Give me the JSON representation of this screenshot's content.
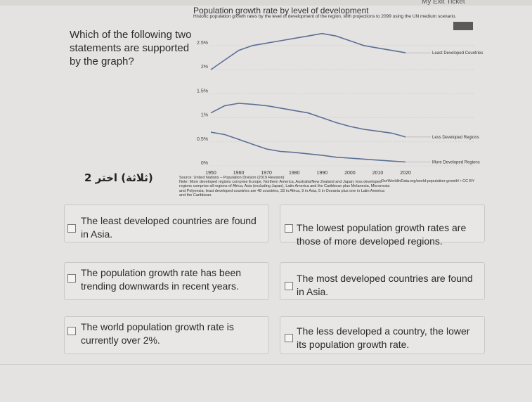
{
  "topbar": {
    "text": "My Exit Ticket"
  },
  "question": "Which of the following two statements are supported by the graph?",
  "rtl_label": "(ثلاثة) اختر 2",
  "chart_data": {
    "type": "line",
    "title": "Population growth rate by level of development",
    "subtitle": "Historic population growth rates by the level of development of the region, with projections to 2099 using the UN medium scenario.",
    "x": [
      1950,
      1955,
      1960,
      1965,
      1970,
      1975,
      1980,
      1985,
      1990,
      1995,
      2000,
      2005,
      2010,
      2015,
      2020
    ],
    "x_ticks": [
      "1950",
      "1960",
      "1970",
      "1980",
      "1990",
      "2000",
      "2010",
      "2020"
    ],
    "y_ticks": [
      "0%",
      "0.5%",
      "1%",
      "1.5%",
      "2%",
      "2.5%"
    ],
    "ylim": [
      0,
      2.6
    ],
    "xlim": [
      1950,
      2022
    ],
    "series": [
      {
        "name": "Least Developed Countries",
        "color": "#5b6f95",
        "values": [
          2.0,
          2.2,
          2.4,
          2.5,
          2.55,
          2.6,
          2.65,
          2.7,
          2.75,
          2.7,
          2.6,
          2.5,
          2.45,
          2.4,
          2.35
        ]
      },
      {
        "name": "Less Developed Regions",
        "color": "#5b6f95",
        "values": [
          1.1,
          1.25,
          1.3,
          1.28,
          1.25,
          1.2,
          1.15,
          1.1,
          1.0,
          0.9,
          0.82,
          0.76,
          0.72,
          0.68,
          0.6
        ]
      },
      {
        "name": "More Developed Regions",
        "color": "#5b6f95",
        "values": [
          0.7,
          0.65,
          0.55,
          0.45,
          0.35,
          0.3,
          0.28,
          0.25,
          0.22,
          0.18,
          0.16,
          0.14,
          0.12,
          0.1,
          0.08
        ]
      }
    ],
    "source": "Source: United Nations – Population Division (2019 Revision)",
    "note": "Note: More developed regions comprise Europe, Northern America, Australia/New Zealand and Japan; less developed regions comprise all regions of Africa, Asia (excluding Japan), Latin America and the Caribbean plus Melanesia, Micronesia and Polynesia; least developed countries are 48 countries, 33 in Africa, 9 in Asia, 5 in Oceania plus one in Latin America and the Caribbean.",
    "credit": "OurWorldInData.org/world-population-growth/ • CC BY"
  },
  "options": [
    {
      "text": "The least developed countries are found in Asia."
    },
    {
      "text": "The lowest population growth rates are those of more developed regions."
    },
    {
      "text": "The population growth rate has been trending downwards in recent years."
    },
    {
      "text": "The most developed countries are found in Asia."
    },
    {
      "text": "The world population growth rate is currently over 2%."
    },
    {
      "text": "The less developed a country, the lower its population growth rate."
    }
  ]
}
